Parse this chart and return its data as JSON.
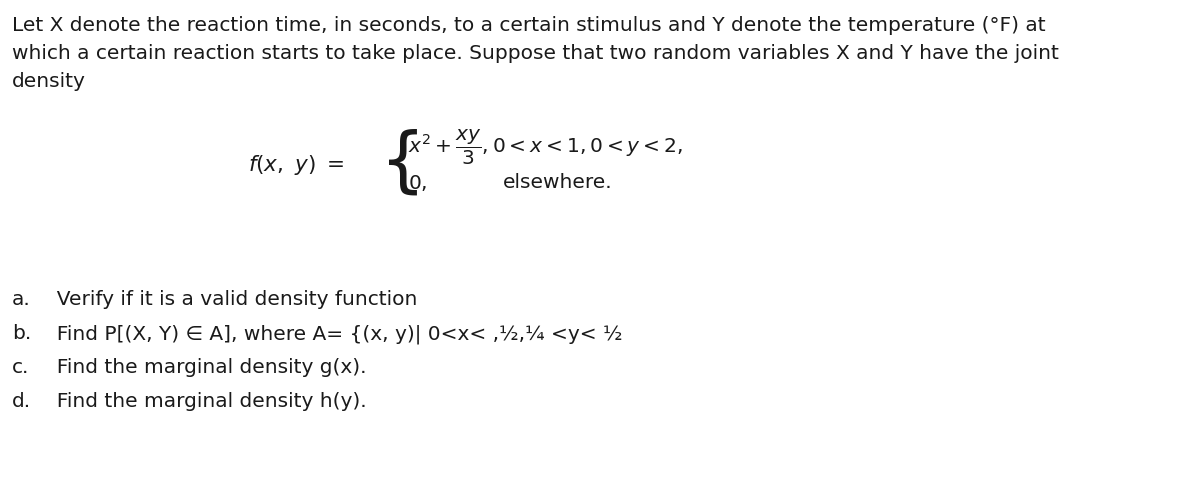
{
  "background_color": "#ffffff",
  "text_color": "#1a1a1a",
  "line1": "Let X denote the reaction time, in seconds, to a certain stimulus and Y denote the temperature (°F) at",
  "line2": "which a certain reaction starts to take place. Suppose that two random variables X and Y have the joint",
  "line3": "density",
  "items": [
    [
      "a.",
      "  Verify if it is a valid density function"
    ],
    [
      "b.",
      "  Find P[(X, Y) ∈ A], where A= {(x, y)| 0<x< ,½,¼ <y< ½"
    ],
    [
      "c.",
      "  Find the marginal density g(x)."
    ],
    [
      "d.",
      "  Find the marginal density h(y)."
    ]
  ],
  "font_size": 14.5,
  "figsize": [
    12.0,
    4.88
  ],
  "dpi": 100
}
